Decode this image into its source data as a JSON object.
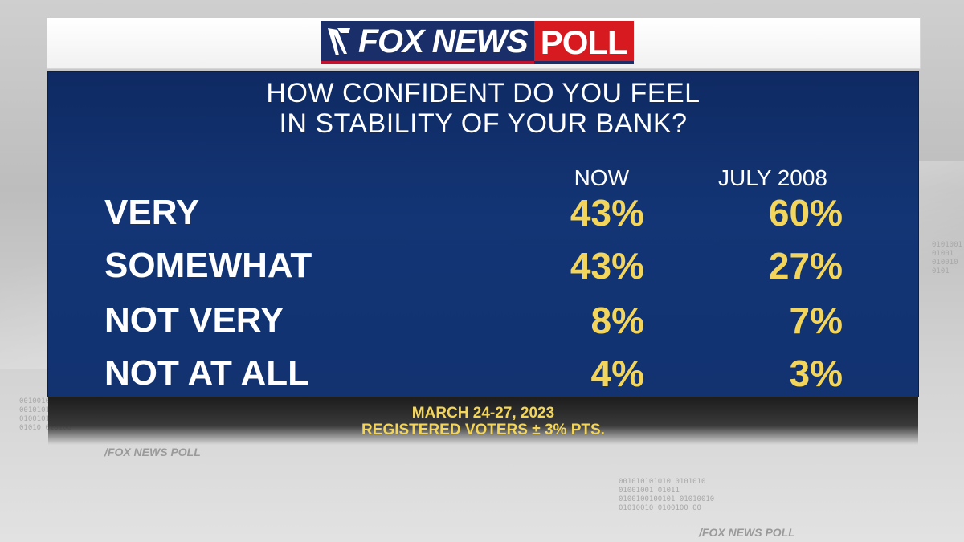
{
  "header": {
    "logo_text": "FOX NEWS",
    "logo_poll": "POLL"
  },
  "title": {
    "line1": "HOW CONFIDENT DO YOU FEEL",
    "line2": "IN STABILITY OF YOUR BANK?"
  },
  "chart_data": {
    "type": "table",
    "columns": [
      "NOW",
      "JULY 2008"
    ],
    "rows": [
      {
        "label": "VERY",
        "values": [
          "43%",
          "60%"
        ]
      },
      {
        "label": "SOMEWHAT",
        "values": [
          "43%",
          "27%"
        ]
      },
      {
        "label": "NOT VERY",
        "values": [
          "8%",
          "7%"
        ]
      },
      {
        "label": "NOT AT ALL",
        "values": [
          "4%",
          "3%"
        ]
      }
    ]
  },
  "footer": {
    "line1": "MARCH 24-27, 2023",
    "line2": "REGISTERED VOTERS ± 3% PTS."
  },
  "colors": {
    "panel": "#133575",
    "value": "#f2d55a",
    "label": "#ffffff",
    "logo_blue": "#1a2f6a",
    "logo_red": "#d71920"
  }
}
